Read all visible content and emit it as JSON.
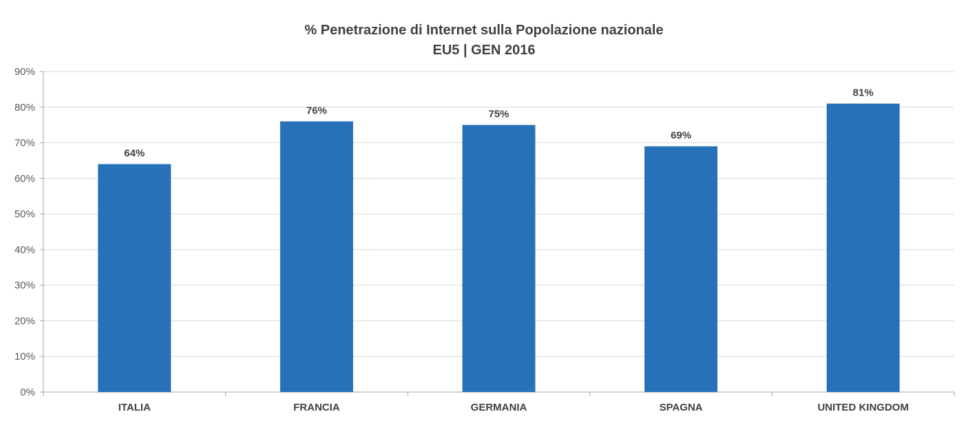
{
  "chart_data": {
    "type": "bar",
    "title": "% Penetrazione di Internet sulla Popolazione nazionale",
    "subtitle": "EU5 | GEN 2016",
    "categories": [
      "ITALIA",
      "FRANCIA",
      "GERMANIA",
      "SPAGNA",
      "UNITED KINGDOM"
    ],
    "values": [
      64,
      76,
      75,
      69,
      81
    ],
    "value_labels": [
      "64%",
      "76%",
      "75%",
      "69%",
      "81%"
    ],
    "ylim": [
      0,
      90
    ],
    "yticks": [
      0,
      10,
      20,
      30,
      40,
      50,
      60,
      70,
      80,
      90
    ],
    "ytick_labels": [
      "0%",
      "10%",
      "20%",
      "30%",
      "40%",
      "50%",
      "60%",
      "70%",
      "80%",
      "90%"
    ],
    "grid": true,
    "legend": "none",
    "bar_color": "#2771b8",
    "grid_color": "#d9d9d9"
  }
}
